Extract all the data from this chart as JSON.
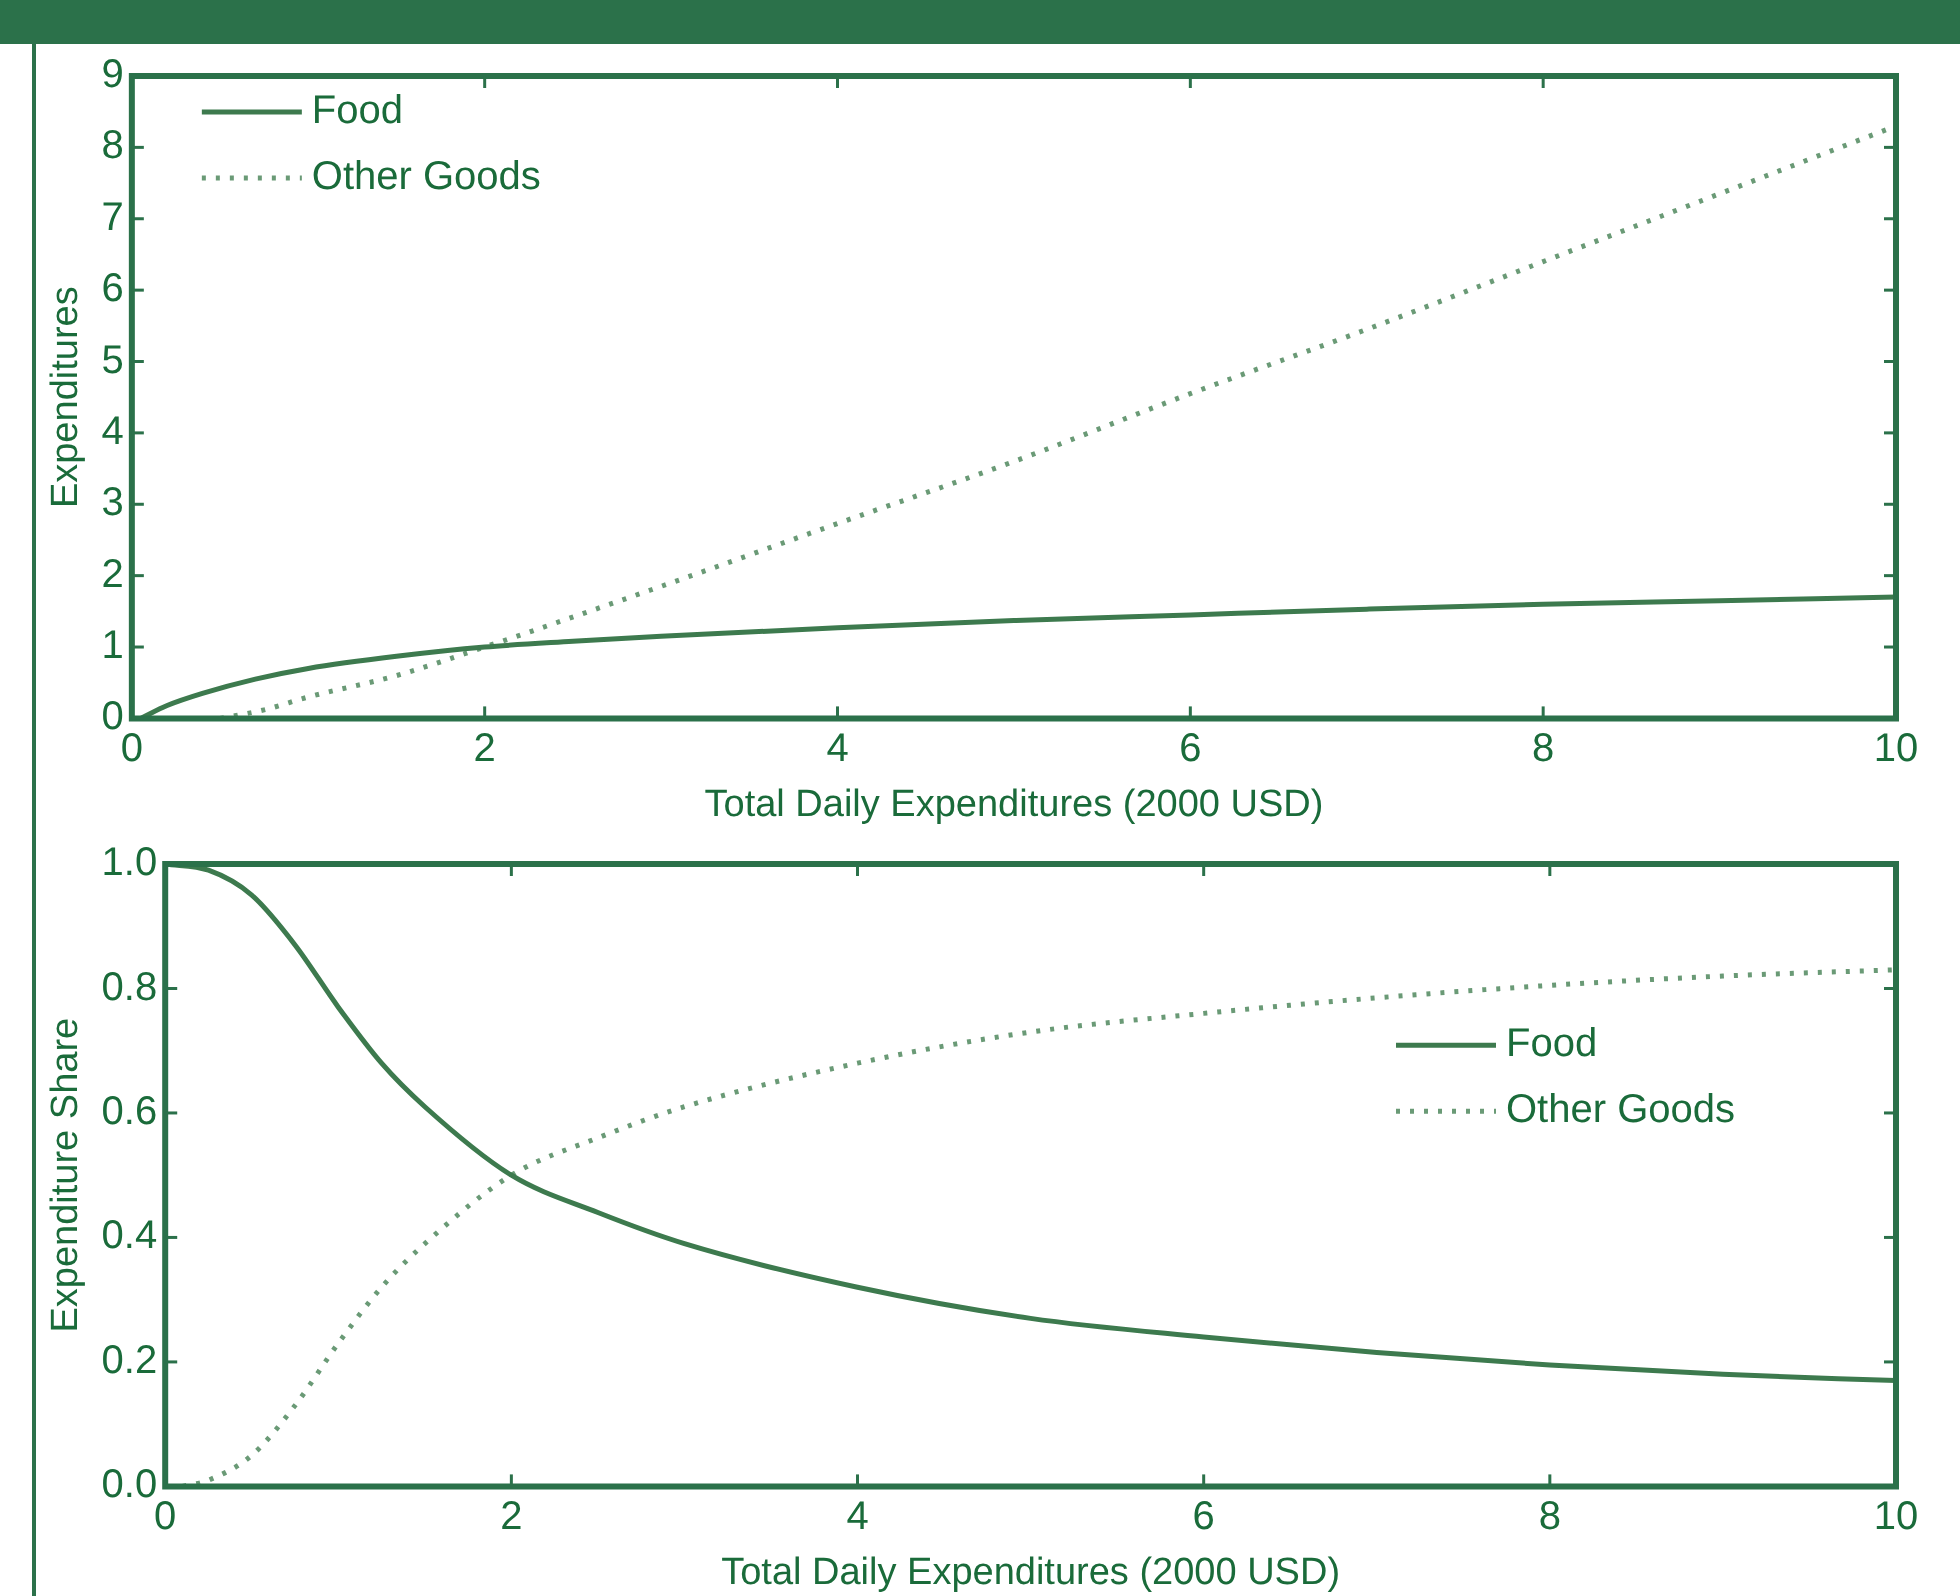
{
  "chart_data": [
    {
      "type": "line",
      "xlabel": "Total Daily Expenditures (2000 USD)",
      "ylabel": "Expenditures",
      "xlim": [
        0,
        10
      ],
      "xticks": [
        0,
        2,
        4,
        6,
        8,
        10
      ],
      "ylim": [
        0,
        9
      ],
      "yticks": [
        0,
        1,
        2,
        3,
        4,
        5,
        6,
        7,
        8,
        9
      ],
      "grid": false,
      "legend": "top left",
      "marker": "none",
      "series": [
        {
          "name": "Food",
          "color": "#3d7a4e",
          "line_style": "solid",
          "x": [
            0.05,
            0.2,
            0.4,
            0.7,
            1,
            1.5,
            2,
            2.5,
            3,
            4,
            5,
            6,
            7,
            8,
            9,
            10
          ],
          "values": [
            0,
            0.18,
            0.35,
            0.55,
            0.7,
            0.87,
            1.0,
            1.08,
            1.15,
            1.27,
            1.37,
            1.45,
            1.53,
            1.6,
            1.65,
            1.7
          ]
        },
        {
          "name": "Other Goods",
          "color": "#6a9a76",
          "line_style": "dotted",
          "x": [
            0.5,
            0.75,
            1,
            1.5,
            2,
            3,
            4,
            5,
            6,
            7,
            8,
            9,
            10
          ],
          "values": [
            0,
            0.12,
            0.3,
            0.6,
            1.0,
            1.85,
            2.73,
            3.6,
            4.55,
            5.45,
            6.4,
            7.35,
            8.3
          ]
        }
      ]
    },
    {
      "type": "line",
      "xlabel": "Total Daily Expenditures (2000 USD)",
      "ylabel": "Expenditure Share",
      "xlim": [
        0,
        10
      ],
      "xticks": [
        0,
        2,
        4,
        6,
        8,
        10
      ],
      "ylim": [
        0,
        1
      ],
      "yticks": [
        {
          "value": 0,
          "label": "0.0"
        },
        0.2,
        0.4,
        0.6,
        0.8,
        {
          "value": 1,
          "label": "1.0"
        }
      ],
      "grid": false,
      "legend": "right",
      "marker": "none",
      "series": [
        {
          "name": "Food",
          "color": "#3d7a4e",
          "line_style": "solid",
          "x": [
            0,
            0.25,
            0.5,
            0.75,
            1,
            1.25,
            1.5,
            2,
            2.5,
            3,
            4,
            5,
            6,
            7,
            8,
            9,
            10
          ],
          "values": [
            1.0,
            0.99,
            0.95,
            0.87,
            0.77,
            0.68,
            0.61,
            0.5,
            0.44,
            0.39,
            0.32,
            0.27,
            0.24,
            0.215,
            0.195,
            0.18,
            0.17
          ]
        },
        {
          "name": "Other Goods",
          "color": "#6a9a76",
          "line_style": "dotted",
          "x": [
            0.1,
            0.25,
            0.5,
            0.75,
            1,
            1.25,
            1.5,
            2,
            2.5,
            3,
            4,
            5,
            6,
            7,
            8,
            9,
            10
          ],
          "values": [
            0,
            0.01,
            0.05,
            0.13,
            0.23,
            0.32,
            0.39,
            0.5,
            0.56,
            0.61,
            0.68,
            0.73,
            0.76,
            0.785,
            0.805,
            0.82,
            0.83
          ]
        }
      ]
    }
  ]
}
